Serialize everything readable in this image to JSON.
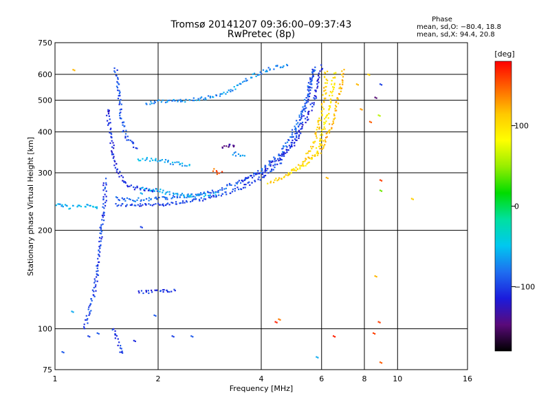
{
  "header": {
    "title": "Tromsø 20141207 09:36:00–09:37:43",
    "subtitle": "RwPretec (8p)"
  },
  "phase_info": {
    "label": "Phase",
    "line_o": "mean, sd,O: −80.4, 18.8",
    "line_x": "mean, sd,X:  94.4, 20.8"
  },
  "colorbar": {
    "label": "[deg]",
    "min": -180,
    "max": 180,
    "ticks": [
      {
        "value": 100,
        "label": "100"
      },
      {
        "value": 0,
        "label": "0"
      },
      {
        "value": -100,
        "label": "−100"
      }
    ],
    "stops": [
      "#000000",
      "#5a0a7a",
      "#1b1bdc",
      "#1e6ef0",
      "#00c8f0",
      "#00e0a0",
      "#00dc00",
      "#96ee00",
      "#ffff00",
      "#ffc800",
      "#ff6400",
      "#ff0000"
    ]
  },
  "chart_data": {
    "type": "scatter",
    "xlabel": "Frequency [MHz]",
    "ylabel": "Stationary phase Virtual Height [km]",
    "x_scale": "log",
    "y_scale": "log",
    "xlim": [
      1,
      16
    ],
    "ylim": [
      75,
      750
    ],
    "x_ticks": [
      {
        "value": 1,
        "label": "1"
      },
      {
        "value": 2,
        "label": "2"
      },
      {
        "value": 4,
        "label": "4"
      },
      {
        "value": 6,
        "label": "6"
      },
      {
        "value": 8,
        "label": "8"
      },
      {
        "value": 10,
        "label": "10"
      },
      {
        "value": 16,
        "label": "16"
      }
    ],
    "y_ticks": [
      {
        "value": 75,
        "label": "75"
      },
      {
        "value": 100,
        "label": "100"
      },
      {
        "value": 200,
        "label": "200"
      },
      {
        "value": 300,
        "label": "300"
      },
      {
        "value": 400,
        "label": "400"
      },
      {
        "value": 500,
        "label": "500"
      },
      {
        "value": 600,
        "label": "600"
      },
      {
        "value": 750,
        "label": "750"
      }
    ],
    "grid": true,
    "color_scale": "phase (deg)",
    "traces": [
      {
        "phase": -100,
        "points": [
          [
            1.5,
            240
          ],
          [
            1.7,
            238
          ],
          [
            2.0,
            240
          ],
          [
            2.5,
            245
          ],
          [
            3.0,
            255
          ],
          [
            3.5,
            270
          ],
          [
            4.0,
            290
          ],
          [
            4.5,
            320
          ],
          [
            5.0,
            380
          ],
          [
            5.3,
            450
          ],
          [
            5.5,
            520
          ],
          [
            5.65,
            600
          ],
          [
            5.7,
            640
          ]
        ]
      },
      {
        "phase": -85,
        "points": [
          [
            1.5,
            250
          ],
          [
            1.7,
            248
          ],
          [
            2.0,
            250
          ],
          [
            2.5,
            255
          ],
          [
            3.0,
            265
          ],
          [
            3.5,
            282
          ],
          [
            4.0,
            305
          ],
          [
            4.5,
            340
          ],
          [
            5.0,
            405
          ],
          [
            5.35,
            480
          ],
          [
            5.55,
            560
          ],
          [
            5.7,
            620
          ]
        ]
      },
      {
        "phase": -110,
        "points": [
          [
            3.5,
            285
          ],
          [
            4.0,
            300
          ],
          [
            4.5,
            330
          ],
          [
            5.0,
            370
          ],
          [
            5.4,
            430
          ],
          [
            5.7,
            500
          ],
          [
            5.9,
            580
          ],
          [
            6.0,
            640
          ]
        ]
      },
      {
        "phase": 110,
        "points": [
          [
            4.2,
            280
          ],
          [
            4.6,
            290
          ],
          [
            5.0,
            305
          ],
          [
            5.4,
            330
          ],
          [
            5.7,
            370
          ],
          [
            5.9,
            420
          ],
          [
            6.05,
            480
          ],
          [
            6.15,
            550
          ],
          [
            6.2,
            620
          ]
        ]
      },
      {
        "phase": 95,
        "points": [
          [
            4.8,
            300
          ],
          [
            5.2,
            310
          ],
          [
            5.6,
            330
          ],
          [
            5.9,
            360
          ],
          [
            6.1,
            410
          ],
          [
            6.3,
            470
          ],
          [
            6.45,
            540
          ],
          [
            6.55,
            610
          ]
        ]
      },
      {
        "phase": 120,
        "points": [
          [
            5.5,
            330
          ],
          [
            5.9,
            345
          ],
          [
            6.2,
            380
          ],
          [
            6.5,
            440
          ],
          [
            6.7,
            500
          ],
          [
            6.85,
            560
          ],
          [
            6.95,
            620
          ]
        ]
      },
      {
        "phase": -95,
        "points": [
          [
            1.5,
            625
          ],
          [
            1.52,
            580
          ],
          [
            1.54,
            530
          ],
          [
            1.55,
            490
          ],
          [
            1.56,
            450
          ],
          [
            1.58,
            420
          ],
          [
            1.6,
            395
          ],
          [
            1.65,
            375
          ],
          [
            1.7,
            365
          ],
          [
            1.75,
            355
          ]
        ]
      },
      {
        "phase": -110,
        "points": [
          [
            1.42,
            470
          ],
          [
            1.44,
            420
          ],
          [
            1.46,
            380
          ],
          [
            1.48,
            350
          ],
          [
            1.5,
            320
          ],
          [
            1.53,
            300
          ],
          [
            1.57,
            285
          ],
          [
            1.62,
            275
          ],
          [
            1.7,
            270
          ],
          [
            1.8,
            268
          ],
          [
            2.0,
            265
          ]
        ]
      },
      {
        "phase": -70,
        "points": [
          [
            1.85,
            490
          ],
          [
            2.0,
            495
          ],
          [
            2.2,
            500
          ],
          [
            2.4,
            500
          ],
          [
            2.6,
            505
          ],
          [
            2.8,
            510
          ],
          [
            3.0,
            520
          ],
          [
            3.2,
            530
          ],
          [
            3.4,
            550
          ],
          [
            3.6,
            575
          ],
          [
            3.8,
            595
          ],
          [
            4.0,
            610
          ],
          [
            4.2,
            625
          ],
          [
            4.5,
            635
          ],
          [
            4.8,
            640
          ]
        ]
      },
      {
        "phase": -60,
        "points": [
          [
            1.75,
            330
          ],
          [
            1.85,
            330
          ],
          [
            2.0,
            328
          ],
          [
            2.2,
            322
          ],
          [
            2.4,
            316
          ],
          [
            2.5,
            312
          ]
        ]
      },
      {
        "phase": -60,
        "points": [
          [
            1.8,
            270
          ],
          [
            2.0,
            265
          ],
          [
            2.2,
            258
          ],
          [
            2.5,
            255
          ],
          [
            2.8,
            257
          ],
          [
            3.0,
            260
          ]
        ]
      },
      {
        "phase": -100,
        "points": [
          [
            1.4,
            285
          ],
          [
            1.4,
            250
          ],
          [
            1.38,
            220
          ],
          [
            1.36,
            190
          ],
          [
            1.35,
            170
          ],
          [
            1.33,
            150
          ],
          [
            1.31,
            135
          ],
          [
            1.28,
            120
          ],
          [
            1.25,
            110
          ],
          [
            1.22,
            100
          ]
        ]
      },
      {
        "phase": -60,
        "points": [
          [
            1.0,
            240
          ],
          [
            1.05,
            238
          ],
          [
            1.1,
            235
          ],
          [
            1.15,
            236
          ],
          [
            1.2,
            237
          ],
          [
            1.25,
            238
          ],
          [
            1.3,
            237
          ],
          [
            1.35,
            236
          ]
        ]
      },
      {
        "phase": -100,
        "points": [
          [
            1.48,
            100
          ],
          [
            1.5,
            95
          ],
          [
            1.52,
            92
          ],
          [
            1.54,
            88
          ],
          [
            1.56,
            85
          ],
          [
            1.58,
            83
          ]
        ]
      },
      {
        "phase": -105,
        "points": [
          [
            1.75,
            130
          ],
          [
            1.85,
            130
          ],
          [
            1.95,
            130
          ],
          [
            2.05,
            131
          ],
          [
            2.15,
            131
          ],
          [
            2.25,
            130
          ]
        ]
      },
      {
        "phase": 150,
        "points": [
          [
            2.9,
            305
          ],
          [
            3.0,
            300
          ],
          [
            3.1,
            298
          ]
        ]
      },
      {
        "phase": -140,
        "points": [
          [
            3.05,
            360
          ],
          [
            3.15,
            362
          ],
          [
            3.3,
            365
          ],
          [
            3.4,
            362
          ]
        ]
      },
      {
        "phase": -70,
        "points": [
          [
            3.3,
            345
          ],
          [
            3.45,
            340
          ],
          [
            3.6,
            338
          ]
        ]
      }
    ],
    "scatter_points": [
      {
        "x": 1.13,
        "y": 620,
        "phase": 120
      },
      {
        "x": 1.05,
        "y": 85,
        "phase": -90
      },
      {
        "x": 1.12,
        "y": 113,
        "phase": -60
      },
      {
        "x": 1.25,
        "y": 95,
        "phase": -100
      },
      {
        "x": 1.33,
        "y": 97,
        "phase": -90
      },
      {
        "x": 1.7,
        "y": 92,
        "phase": -110
      },
      {
        "x": 1.78,
        "y": 205,
        "phase": -100
      },
      {
        "x": 1.78,
        "y": 260,
        "phase": -60
      },
      {
        "x": 1.95,
        "y": 110,
        "phase": -90
      },
      {
        "x": 2.2,
        "y": 95,
        "phase": -100
      },
      {
        "x": 2.5,
        "y": 95,
        "phase": -90
      },
      {
        "x": 4.4,
        "y": 105,
        "phase": 170
      },
      {
        "x": 4.5,
        "y": 107,
        "phase": 140
      },
      {
        "x": 5.8,
        "y": 82,
        "phase": -60
      },
      {
        "x": 6.5,
        "y": 95,
        "phase": 170
      },
      {
        "x": 8.5,
        "y": 97,
        "phase": 160
      },
      {
        "x": 8.6,
        "y": 145,
        "phase": 120
      },
      {
        "x": 8.8,
        "y": 105,
        "phase": 160
      },
      {
        "x": 8.9,
        "y": 79,
        "phase": 150
      },
      {
        "x": 8.9,
        "y": 265,
        "phase": 40
      },
      {
        "x": 8.9,
        "y": 285,
        "phase": 160
      },
      {
        "x": 8.9,
        "y": 560,
        "phase": -100
      },
      {
        "x": 8.6,
        "y": 510,
        "phase": -150
      },
      {
        "x": 8.8,
        "y": 450,
        "phase": 60
      },
      {
        "x": 8.3,
        "y": 430,
        "phase": 150
      },
      {
        "x": 7.6,
        "y": 560,
        "phase": 120
      },
      {
        "x": 8.2,
        "y": 600,
        "phase": 110
      },
      {
        "x": 7.8,
        "y": 470,
        "phase": 130
      },
      {
        "x": 6.2,
        "y": 290,
        "phase": 120
      },
      {
        "x": 11.0,
        "y": 250,
        "phase": 110
      }
    ]
  }
}
